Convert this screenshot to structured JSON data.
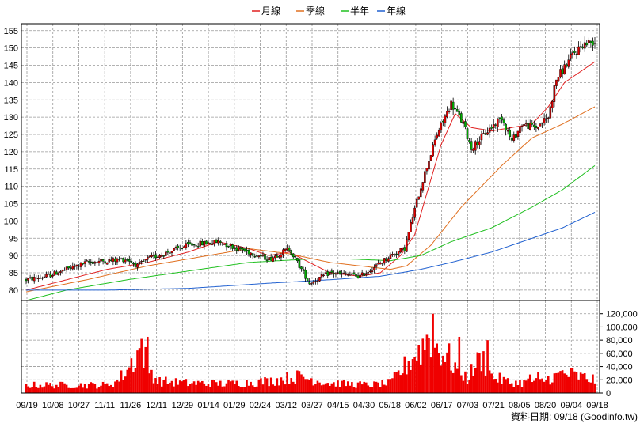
{
  "legend": [
    {
      "label": "月線",
      "color": "#e02020"
    },
    {
      "label": "季線",
      "color": "#e07020"
    },
    {
      "label": "半年",
      "color": "#20c020"
    },
    {
      "label": "年線",
      "color": "#2060d0"
    }
  ],
  "footer": "資料日期: 09/18  (Goodinfo.tw)",
  "chart_data": [
    {
      "type": "candlestick",
      "ylim": [
        77,
        157
      ],
      "yticks": [
        80,
        85,
        90,
        95,
        100,
        105,
        110,
        115,
        120,
        125,
        130,
        135,
        140,
        145,
        150,
        155
      ],
      "x_tick_labels": [
        "09/19",
        "10/08",
        "10/27",
        "11/11",
        "11/26",
        "12/11",
        "12/29",
        "01/14",
        "01/29",
        "02/24",
        "03/12",
        "03/27",
        "04/15",
        "04/30",
        "05/18",
        "06/02",
        "06/17",
        "07/03",
        "07/21",
        "08/05",
        "08/20",
        "09/04",
        "09/18"
      ],
      "trading_days": 244,
      "price_anchors": [
        [
          0,
          83
        ],
        [
          10,
          84
        ],
        [
          30,
          88
        ],
        [
          50,
          89
        ],
        [
          55,
          87
        ],
        [
          60,
          89
        ],
        [
          80,
          93
        ],
        [
          95,
          94
        ],
        [
          110,
          91
        ],
        [
          120,
          89
        ],
        [
          130,
          92
        ],
        [
          135,
          87
        ],
        [
          140,
          82
        ],
        [
          150,
          85
        ],
        [
          165,
          84
        ],
        [
          173,
          87
        ],
        [
          180,
          90
        ],
        [
          187,
          92
        ],
        [
          190,
          99
        ],
        [
          196,
          112
        ],
        [
          203,
          125
        ],
        [
          210,
          134
        ],
        [
          216,
          128
        ],
        [
          220,
          121
        ],
        [
          228,
          126
        ],
        [
          235,
          130
        ],
        [
          240,
          123
        ],
        [
          245,
          128
        ],
        [
          252,
          127
        ],
        [
          258,
          130
        ],
        [
          262,
          141
        ],
        [
          270,
          148
        ],
        [
          275,
          151
        ],
        [
          281,
          152
        ]
      ],
      "moving_averages": {
        "月線": [
          [
            0,
            80
          ],
          [
            20,
            83
          ],
          [
            40,
            86
          ],
          [
            60,
            88
          ],
          [
            80,
            91
          ],
          [
            95,
            94
          ],
          [
            110,
            92
          ],
          [
            120,
            90
          ],
          [
            130,
            91
          ],
          [
            140,
            88
          ],
          [
            150,
            85
          ],
          [
            165,
            84
          ],
          [
            175,
            85
          ],
          [
            185,
            90
          ],
          [
            192,
            96
          ],
          [
            198,
            108
          ],
          [
            205,
            122
          ],
          [
            212,
            131
          ],
          [
            220,
            127
          ],
          [
            230,
            126
          ],
          [
            240,
            127
          ],
          [
            250,
            128
          ],
          [
            258,
            133
          ],
          [
            266,
            140
          ],
          [
            281,
            146
          ]
        ],
        "季線": [
          [
            0,
            79.5
          ],
          [
            30,
            83
          ],
          [
            60,
            87
          ],
          [
            90,
            90
          ],
          [
            110,
            92
          ],
          [
            130,
            90.5
          ],
          [
            150,
            88
          ],
          [
            165,
            87
          ],
          [
            180,
            86
          ],
          [
            188,
            87
          ],
          [
            200,
            93
          ],
          [
            215,
            104
          ],
          [
            235,
            116
          ],
          [
            250,
            124
          ],
          [
            265,
            128
          ],
          [
            281,
            133
          ]
        ],
        "半年": [
          [
            0,
            77
          ],
          [
            20,
            80
          ],
          [
            50,
            83
          ],
          [
            80,
            85.5
          ],
          [
            110,
            88
          ],
          [
            140,
            89
          ],
          [
            160,
            89
          ],
          [
            180,
            88.5
          ],
          [
            195,
            90
          ],
          [
            210,
            94
          ],
          [
            230,
            98
          ],
          [
            250,
            104
          ],
          [
            265,
            109
          ],
          [
            281,
            116
          ]
        ],
        "年線": [
          [
            0,
            80
          ],
          [
            40,
            80
          ],
          [
            80,
            80.5
          ],
          [
            120,
            82
          ],
          [
            150,
            83
          ],
          [
            175,
            84
          ],
          [
            195,
            86
          ],
          [
            210,
            88
          ],
          [
            230,
            91
          ],
          [
            250,
            95
          ],
          [
            265,
            98
          ],
          [
            281,
            102.5
          ]
        ]
      }
    },
    {
      "type": "bar",
      "ylim": [
        0,
        140000
      ],
      "yticks": [
        0,
        20000,
        40000,
        60000,
        80000,
        100000,
        120000
      ],
      "ytick_labels": [
        "0",
        "20,000",
        "40,000",
        "60,000",
        "80,000",
        "100,000",
        "120,000"
      ],
      "volume_anchors": [
        [
          0,
          12000
        ],
        [
          40,
          12000
        ],
        [
          45,
          18000
        ],
        [
          50,
          35000
        ],
        [
          54,
          55000
        ],
        [
          57,
          72000
        ],
        [
          60,
          40000
        ],
        [
          65,
          18000
        ],
        [
          80,
          15000
        ],
        [
          100,
          14000
        ],
        [
          120,
          18000
        ],
        [
          135,
          25000
        ],
        [
          150,
          15000
        ],
        [
          170,
          12000
        ],
        [
          180,
          15000
        ],
        [
          190,
          50000
        ],
        [
          196,
          70000
        ],
        [
          199,
          90000
        ],
        [
          203,
          70000
        ],
        [
          208,
          55000
        ],
        [
          212,
          40000
        ],
        [
          218,
          22000
        ],
        [
          225,
          55000
        ],
        [
          230,
          25000
        ],
        [
          240,
          15000
        ],
        [
          255,
          18000
        ],
        [
          265,
          30000
        ],
        [
          281,
          20000
        ]
      ],
      "volume_spikes": [
        [
          201,
          120000
        ],
        [
          198,
          88000
        ],
        [
          209,
          75000
        ],
        [
          214,
          85000
        ],
        [
          228,
          80000
        ],
        [
          60,
          85000
        ],
        [
          56,
          68000
        ],
        [
          253,
          32000
        ],
        [
          249,
          28000
        ],
        [
          262,
          30000
        ],
        [
          270,
          38000
        ]
      ],
      "color": "#f00000"
    }
  ]
}
